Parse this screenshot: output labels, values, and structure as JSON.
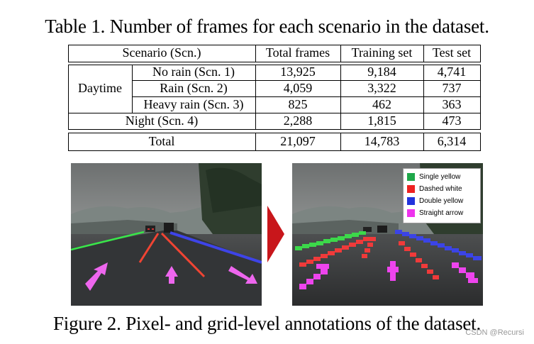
{
  "table": {
    "caption": "Table 1. Number of frames for each scenario in the dataset.",
    "headers": [
      "Scenario (Scn.)",
      "Total frames",
      "Training set",
      "Test set"
    ],
    "daytime_label": "Daytime",
    "rows": [
      {
        "scenario": "No rain (Scn. 1)",
        "total": "13,925",
        "train": "9,184",
        "test": "4,741"
      },
      {
        "scenario": "Rain (Scn. 2)",
        "total": "4,059",
        "train": "3,322",
        "test": "737"
      },
      {
        "scenario": "Heavy rain (Scn. 3)",
        "total": "825",
        "train": "462",
        "test": "363"
      },
      {
        "scenario": "Night (Scn. 4)",
        "total": "2,288",
        "train": "1,815",
        "test": "473"
      },
      {
        "scenario": "Total",
        "total": "21,097",
        "train": "14,783",
        "test": "6,314"
      }
    ]
  },
  "figure": {
    "caption": "Figure 2. Pixel- and grid-level annotations of the dataset.",
    "legend": [
      {
        "label": "Single yellow",
        "color": "#1fa84a"
      },
      {
        "label": "Dashed white",
        "color": "#ee2222"
      },
      {
        "label": "Double yellow",
        "color": "#2233dd"
      },
      {
        "label": "Straight arrow",
        "color": "#ee33ee"
      }
    ],
    "arrow_color": "#cc1111"
  },
  "watermark": "CSDN @Recursi"
}
